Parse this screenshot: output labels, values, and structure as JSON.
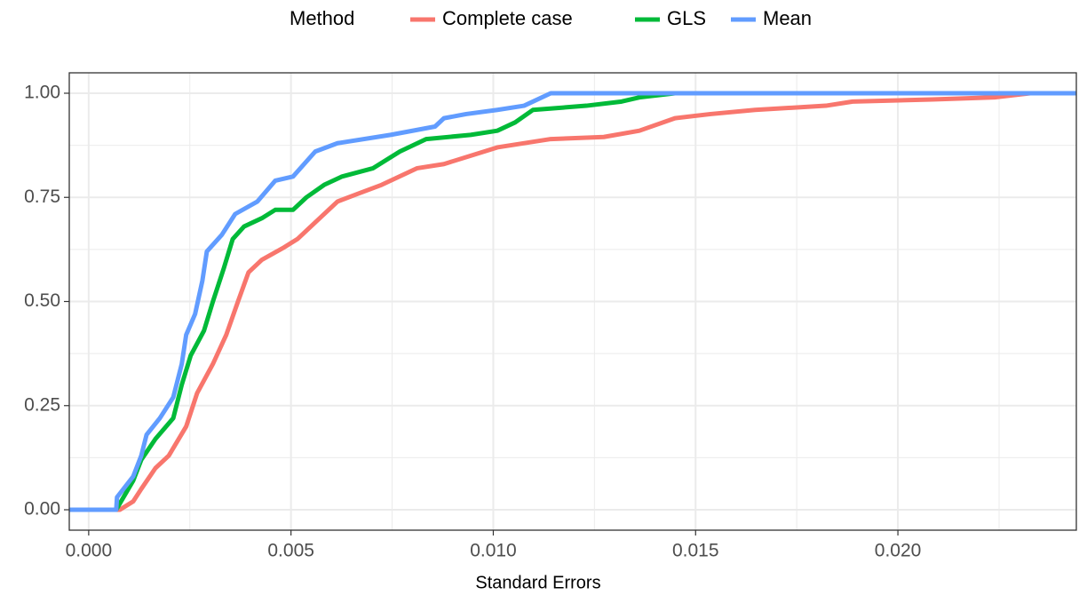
{
  "chart_data": {
    "type": "ecdf",
    "xlabel": "Standard Errors",
    "legend_title": "Method",
    "legend_position": "top",
    "grid": true,
    "xlim": [
      -0.00048,
      0.02441
    ],
    "ylim": [
      -0.049,
      1.049
    ],
    "xticks": [
      {
        "value": 0,
        "label": "0.000"
      },
      {
        "value": 0.005,
        "label": "0.005"
      },
      {
        "value": 0.01,
        "label": "0.010"
      },
      {
        "value": 0.015,
        "label": "0.015"
      },
      {
        "value": 0.02,
        "label": "0.020"
      }
    ],
    "yticks": [
      {
        "value": 0,
        "label": "0.00"
      },
      0.25,
      {
        "value": 0.5,
        "label": "0.50"
      },
      0.75,
      {
        "value": 1,
        "label": "1.00"
      }
    ],
    "x_minor_grid": [
      0.0025,
      0.0075,
      0.0125,
      0.0175,
      0.0225
    ],
    "y_minor_grid": [
      0.125,
      0.375,
      0.625,
      0.875
    ],
    "series": [
      {
        "name": "Complete case",
        "color": "#f8766d",
        "x": [
          0.00077,
          0.0011,
          0.0013,
          0.00165,
          0.00198,
          0.00241,
          0.00268,
          0.00307,
          0.0034,
          0.00369,
          0.00395,
          0.00428,
          0.00483,
          0.00516,
          0.00571,
          0.00615,
          0.00669,
          0.00724,
          0.00812,
          0.00878,
          0.00944,
          0.0101,
          0.01142,
          0.01273,
          0.01361,
          0.01449,
          0.01537,
          0.01647,
          0.01822,
          0.01888,
          0.02085,
          0.02239,
          0.02327
        ],
        "values": [
          0,
          0.02,
          0.05,
          0.1,
          0.13,
          0.2,
          0.28,
          0.35,
          0.42,
          0.5,
          0.57,
          0.6,
          0.63,
          0.65,
          0.7,
          0.74,
          0.76,
          0.78,
          0.82,
          0.83,
          0.85,
          0.87,
          0.89,
          0.895,
          0.91,
          0.94,
          0.95,
          0.96,
          0.97,
          0.98,
          0.985,
          0.99,
          1
        ]
      },
      {
        "name": "GLS",
        "color": "#00ba38",
        "x": [
          0.00068,
          0.0011,
          0.0013,
          0.00165,
          0.00209,
          0.0023,
          0.00252,
          0.00285,
          0.00307,
          0.00334,
          0.00356,
          0.00384,
          0.00428,
          0.00461,
          0.00505,
          0.00538,
          0.00582,
          0.00626,
          0.00703,
          0.00769,
          0.00834,
          0.00944,
          0.0101,
          0.01054,
          0.01098,
          0.0123,
          0.01317,
          0.01361,
          0.01449
        ],
        "values": [
          0,
          0.07,
          0.12,
          0.17,
          0.22,
          0.3,
          0.37,
          0.43,
          0.5,
          0.58,
          0.65,
          0.68,
          0.7,
          0.72,
          0.72,
          0.75,
          0.78,
          0.8,
          0.82,
          0.86,
          0.89,
          0.9,
          0.91,
          0.93,
          0.96,
          0.97,
          0.98,
          0.99,
          1
        ]
      },
      {
        "name": "Mean",
        "color": "#619cff",
        "x": [
          0.00068,
          0.0007,
          0.0011,
          0.0013,
          0.00143,
          0.00176,
          0.00209,
          0.0023,
          0.00241,
          0.00263,
          0.00281,
          0.00292,
          0.00329,
          0.00362,
          0.00417,
          0.00461,
          0.00505,
          0.0056,
          0.00615,
          0.00746,
          0.00856,
          0.00878,
          0.00933,
          0.0101,
          0.01076,
          0.01142
        ],
        "values": [
          0,
          0.03,
          0.08,
          0.13,
          0.18,
          0.22,
          0.27,
          0.35,
          0.42,
          0.47,
          0.55,
          0.62,
          0.66,
          0.71,
          0.74,
          0.79,
          0.8,
          0.86,
          0.88,
          0.9,
          0.92,
          0.94,
          0.95,
          0.96,
          0.97,
          1
        ]
      }
    ]
  }
}
